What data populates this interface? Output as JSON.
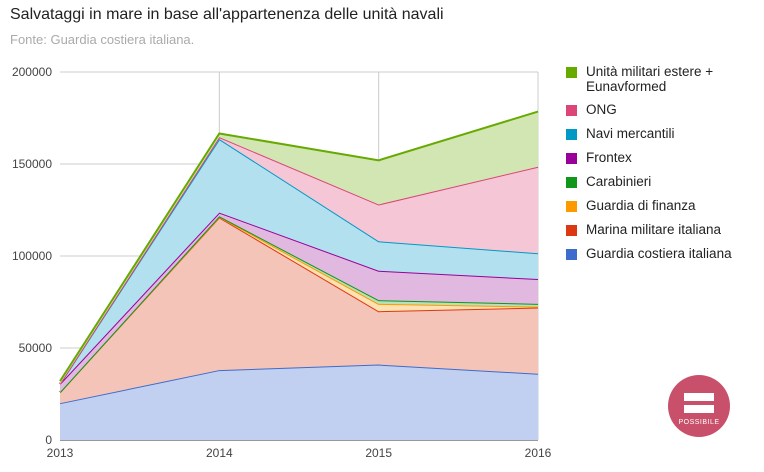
{
  "chart_data": {
    "type": "area",
    "stacked": true,
    "title": "Salvataggi in mare in base all'appartenenza delle unità navali",
    "subtitle": "Fonte: Guardia costiera italiana.",
    "x": [
      "2013",
      "2014",
      "2015",
      "2016"
    ],
    "ylim": [
      0,
      200000
    ],
    "yticks": [
      "0",
      "50000",
      "100000",
      "150000",
      "200000"
    ],
    "grid": true,
    "legend_position": "right",
    "series": [
      {
        "name": "Guardia costiera italiana",
        "color": "#3d6ccc",
        "fill": "#c1d0f0",
        "values": [
          20000,
          38000,
          41000,
          36000
        ]
      },
      {
        "name": "Marina militare italiana",
        "color": "#dc3912",
        "fill": "#f4c4b8",
        "values": [
          6000,
          83000,
          29000,
          36000
        ]
      },
      {
        "name": "Guardia di finanza",
        "color": "#ff9900",
        "fill": "#ffe1b2",
        "values": [
          0,
          300,
          4000,
          500
        ]
      },
      {
        "name": "Carabinieri",
        "color": "#109618",
        "fill": "#b8e0ba",
        "values": [
          0,
          300,
          2000,
          1500
        ]
      },
      {
        "name": "Frontex",
        "color": "#990099",
        "fill": "#e0b8e0",
        "values": [
          4500,
          2000,
          16000,
          13500
        ]
      },
      {
        "name": "Navi mercantili",
        "color": "#0099c6",
        "fill": "#b2e0ee",
        "values": [
          0,
          40000,
          16000,
          14000
        ]
      },
      {
        "name": "ONG",
        "color": "#dd4477",
        "fill": "#f5c6d6",
        "values": [
          0,
          1000,
          20000,
          47000
        ]
      },
      {
        "name": "Unità militari estere + Eunavformed",
        "color": "#66aa00",
        "fill": "#d1e6b2",
        "values": [
          1500,
          2000,
          24000,
          30000
        ]
      }
    ]
  },
  "logo": {
    "text": "POSSIBILE",
    "color": "#c8506a"
  }
}
